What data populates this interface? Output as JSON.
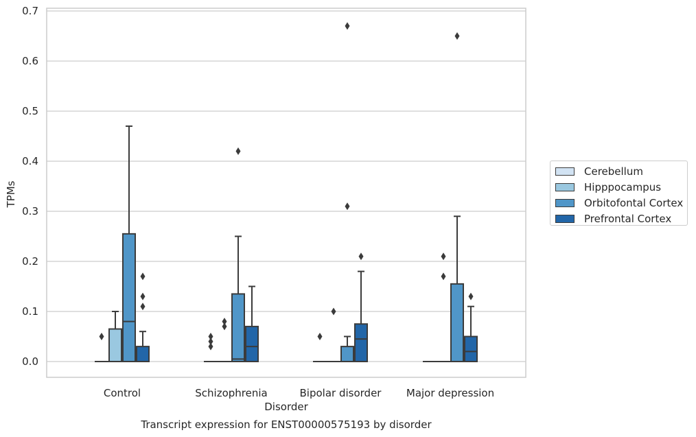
{
  "caption": "Transcript expression for ENST00000575193 by disorder",
  "chart_data": {
    "type": "box",
    "xlabel": "Disorder",
    "ylabel": "TPMs",
    "ylim": [
      -0.03,
      0.705
    ],
    "yticks": [
      "0.0",
      "0.1",
      "0.2",
      "0.3",
      "0.4",
      "0.5",
      "0.6",
      "0.7"
    ],
    "grid": true,
    "legend_position": "right",
    "categories": [
      "Control",
      "Schizophrenia",
      "Bipolar disorder",
      "Major depression"
    ],
    "series": [
      {
        "name": "Cerebellum",
        "color": "#d2e3f3",
        "boxes": [
          {
            "category": "Control",
            "q1": 0,
            "median": 0,
            "q3": 0,
            "whisker_low": 0,
            "whisker_high": 0,
            "outliers": []
          },
          {
            "category": "Schizophrenia",
            "q1": 0,
            "median": 0,
            "q3": 0,
            "whisker_low": 0,
            "whisker_high": 0,
            "outliers": []
          },
          {
            "category": "Bipolar disorder",
            "q1": 0,
            "median": 0,
            "q3": 0,
            "whisker_low": 0,
            "whisker_high": 0,
            "outliers": []
          },
          {
            "category": "Major depression",
            "q1": 0,
            "median": 0,
            "q3": 0,
            "whisker_low": 0,
            "whisker_high": 0,
            "outliers": []
          }
        ]
      },
      {
        "name": "Hipppocampus",
        "color": "#9ac8e0",
        "boxes": [
          {
            "category": "Control",
            "q1": 0,
            "median": 0,
            "q3": 0.065,
            "whisker_low": 0,
            "whisker_high": 0.1,
            "outliers": []
          },
          {
            "category": "Schizophrenia",
            "q1": 0,
            "median": 0,
            "q3": 0,
            "whisker_low": 0,
            "whisker_high": 0,
            "outliers": []
          },
          {
            "category": "Bipolar disorder",
            "q1": 0,
            "median": 0,
            "q3": 0,
            "whisker_low": 0,
            "whisker_high": 0,
            "outliers": []
          },
          {
            "category": "Major depression",
            "q1": 0,
            "median": 0,
            "q3": 0,
            "whisker_low": 0,
            "whisker_high": 0,
            "outliers": []
          }
        ]
      },
      {
        "name": "Orbitofontal Cortex",
        "color": "#5096c8",
        "boxes": [
          {
            "category": "Control",
            "q1": 0,
            "median": 0.08,
            "q3": 0.255,
            "whisker_low": 0,
            "whisker_high": 0.47,
            "outliers": []
          },
          {
            "category": "Schizophrenia",
            "q1": 0,
            "median": 0.005,
            "q3": 0.135,
            "whisker_low": 0,
            "whisker_high": 0.25,
            "outliers": [
              0.42
            ]
          },
          {
            "category": "Bipolar disorder",
            "q1": 0,
            "median": 0,
            "q3": 0.03,
            "whisker_low": 0,
            "whisker_high": 0.05,
            "outliers": [
              0.31,
              0.67
            ]
          },
          {
            "category": "Major depression",
            "q1": 0,
            "median": 0,
            "q3": 0.155,
            "whisker_low": 0,
            "whisker_high": 0.29,
            "outliers": [
              0.65
            ]
          }
        ]
      },
      {
        "name": "Prefrontal Cortex",
        "color": "#2266a8",
        "boxes": [
          {
            "category": "Control",
            "q1": 0,
            "median": 0,
            "q3": 0.03,
            "whisker_low": 0,
            "whisker_high": 0.06,
            "outliers": [
              0.11,
              0.13,
              0.17
            ]
          },
          {
            "category": "Schizophrenia",
            "q1": 0,
            "median": 0.03,
            "q3": 0.07,
            "whisker_low": 0,
            "whisker_high": 0.15,
            "outliers": []
          },
          {
            "category": "Bipolar disorder",
            "q1": 0,
            "median": 0.045,
            "q3": 0.075,
            "whisker_low": 0,
            "whisker_high": 0.18,
            "outliers": [
              0.21
            ]
          },
          {
            "category": "Major depression",
            "q1": 0,
            "median": 0.02,
            "q3": 0.05,
            "whisker_low": 0,
            "whisker_high": 0.11,
            "outliers": [
              0.13
            ]
          }
        ]
      }
    ],
    "extra_outliers": [
      {
        "category": "Control",
        "series_index": 0,
        "values": [
          0.05
        ]
      },
      {
        "category": "Schizophrenia",
        "series_index": 0,
        "values": [
          0.03,
          0.04,
          0.05
        ]
      },
      {
        "category": "Schizophrenia",
        "series_index": 1,
        "values": [
          0.07,
          0.08
        ]
      },
      {
        "category": "Bipolar disorder",
        "series_index": 0,
        "values": [
          0.05
        ]
      },
      {
        "category": "Bipolar disorder",
        "series_index": 1,
        "values": [
          0.1
        ]
      },
      {
        "category": "Major depression",
        "series_index": 1,
        "values": [
          0.17,
          0.21
        ]
      }
    ]
  }
}
